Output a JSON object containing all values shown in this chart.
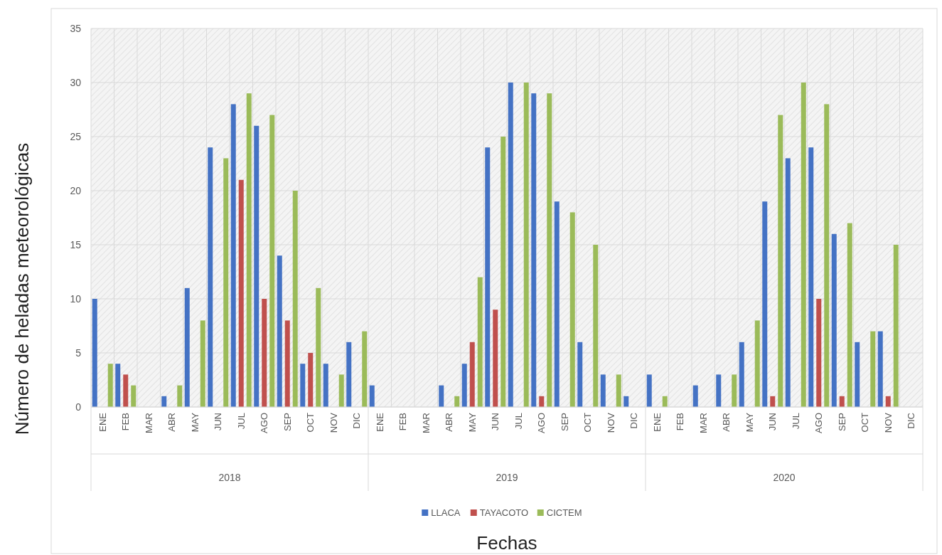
{
  "chart_data": {
    "type": "bar",
    "ylabel": "Número de heladas meteorológicas",
    "categories": [
      "ENE",
      "FEB",
      "MAR",
      "ABR",
      "MAY",
      "JUN",
      "JUL",
      "AGO",
      "SEP",
      "OCT",
      "NOV",
      "DIC",
      "ENE",
      "FEB",
      "MAR",
      "ABR",
      "MAY",
      "JUN",
      "JUL",
      "AGO",
      "SEP",
      "OCT",
      "NOV",
      "DIC",
      "ENE",
      "FEB",
      "MAR",
      "ABR",
      "MAY",
      "JUN",
      "JUL",
      "AGO",
      "SEP",
      "OCT",
      "NOV",
      "DIC"
    ],
    "annotations": [
      "2018",
      "2019",
      "2020",
      "Fechas"
    ],
    "series": [
      {
        "name": "LLACA",
        "color": "#4472c4",
        "values": [
          10,
          4,
          0,
          1,
          11,
          24,
          28,
          26,
          14,
          4,
          4,
          6,
          2,
          0,
          0,
          2,
          4,
          24,
          30,
          29,
          19,
          6,
          3,
          1,
          3,
          0,
          2,
          3,
          6,
          19,
          23,
          24,
          16,
          6,
          7,
          0
        ]
      },
      {
        "name": "TAYACOTO",
        "color": "#c0504d",
        "values": [
          0,
          3,
          0,
          0,
          0,
          0,
          21,
          10,
          8,
          5,
          0,
          0,
          0,
          0,
          0,
          0,
          6,
          9,
          0,
          1,
          0,
          0,
          0,
          0,
          0,
          0,
          0,
          0,
          0,
          1,
          0,
          10,
          1,
          0,
          1,
          0
        ]
      },
      {
        "name": "CICTEM",
        "color": "#9bbb59",
        "values": [
          4,
          2,
          0,
          2,
          8,
          23,
          29,
          27,
          20,
          11,
          3,
          7,
          0,
          0,
          0,
          1,
          12,
          25,
          30,
          29,
          18,
          15,
          3,
          0,
          1,
          0,
          0,
          3,
          8,
          27,
          30,
          28,
          17,
          7,
          15,
          0
        ]
      }
    ],
    "ylim": [
      0,
      35
    ],
    "yticks": [
      0,
      5,
      10,
      15,
      20,
      25,
      30,
      35
    ],
    "grid": true,
    "legend": "bottom"
  }
}
